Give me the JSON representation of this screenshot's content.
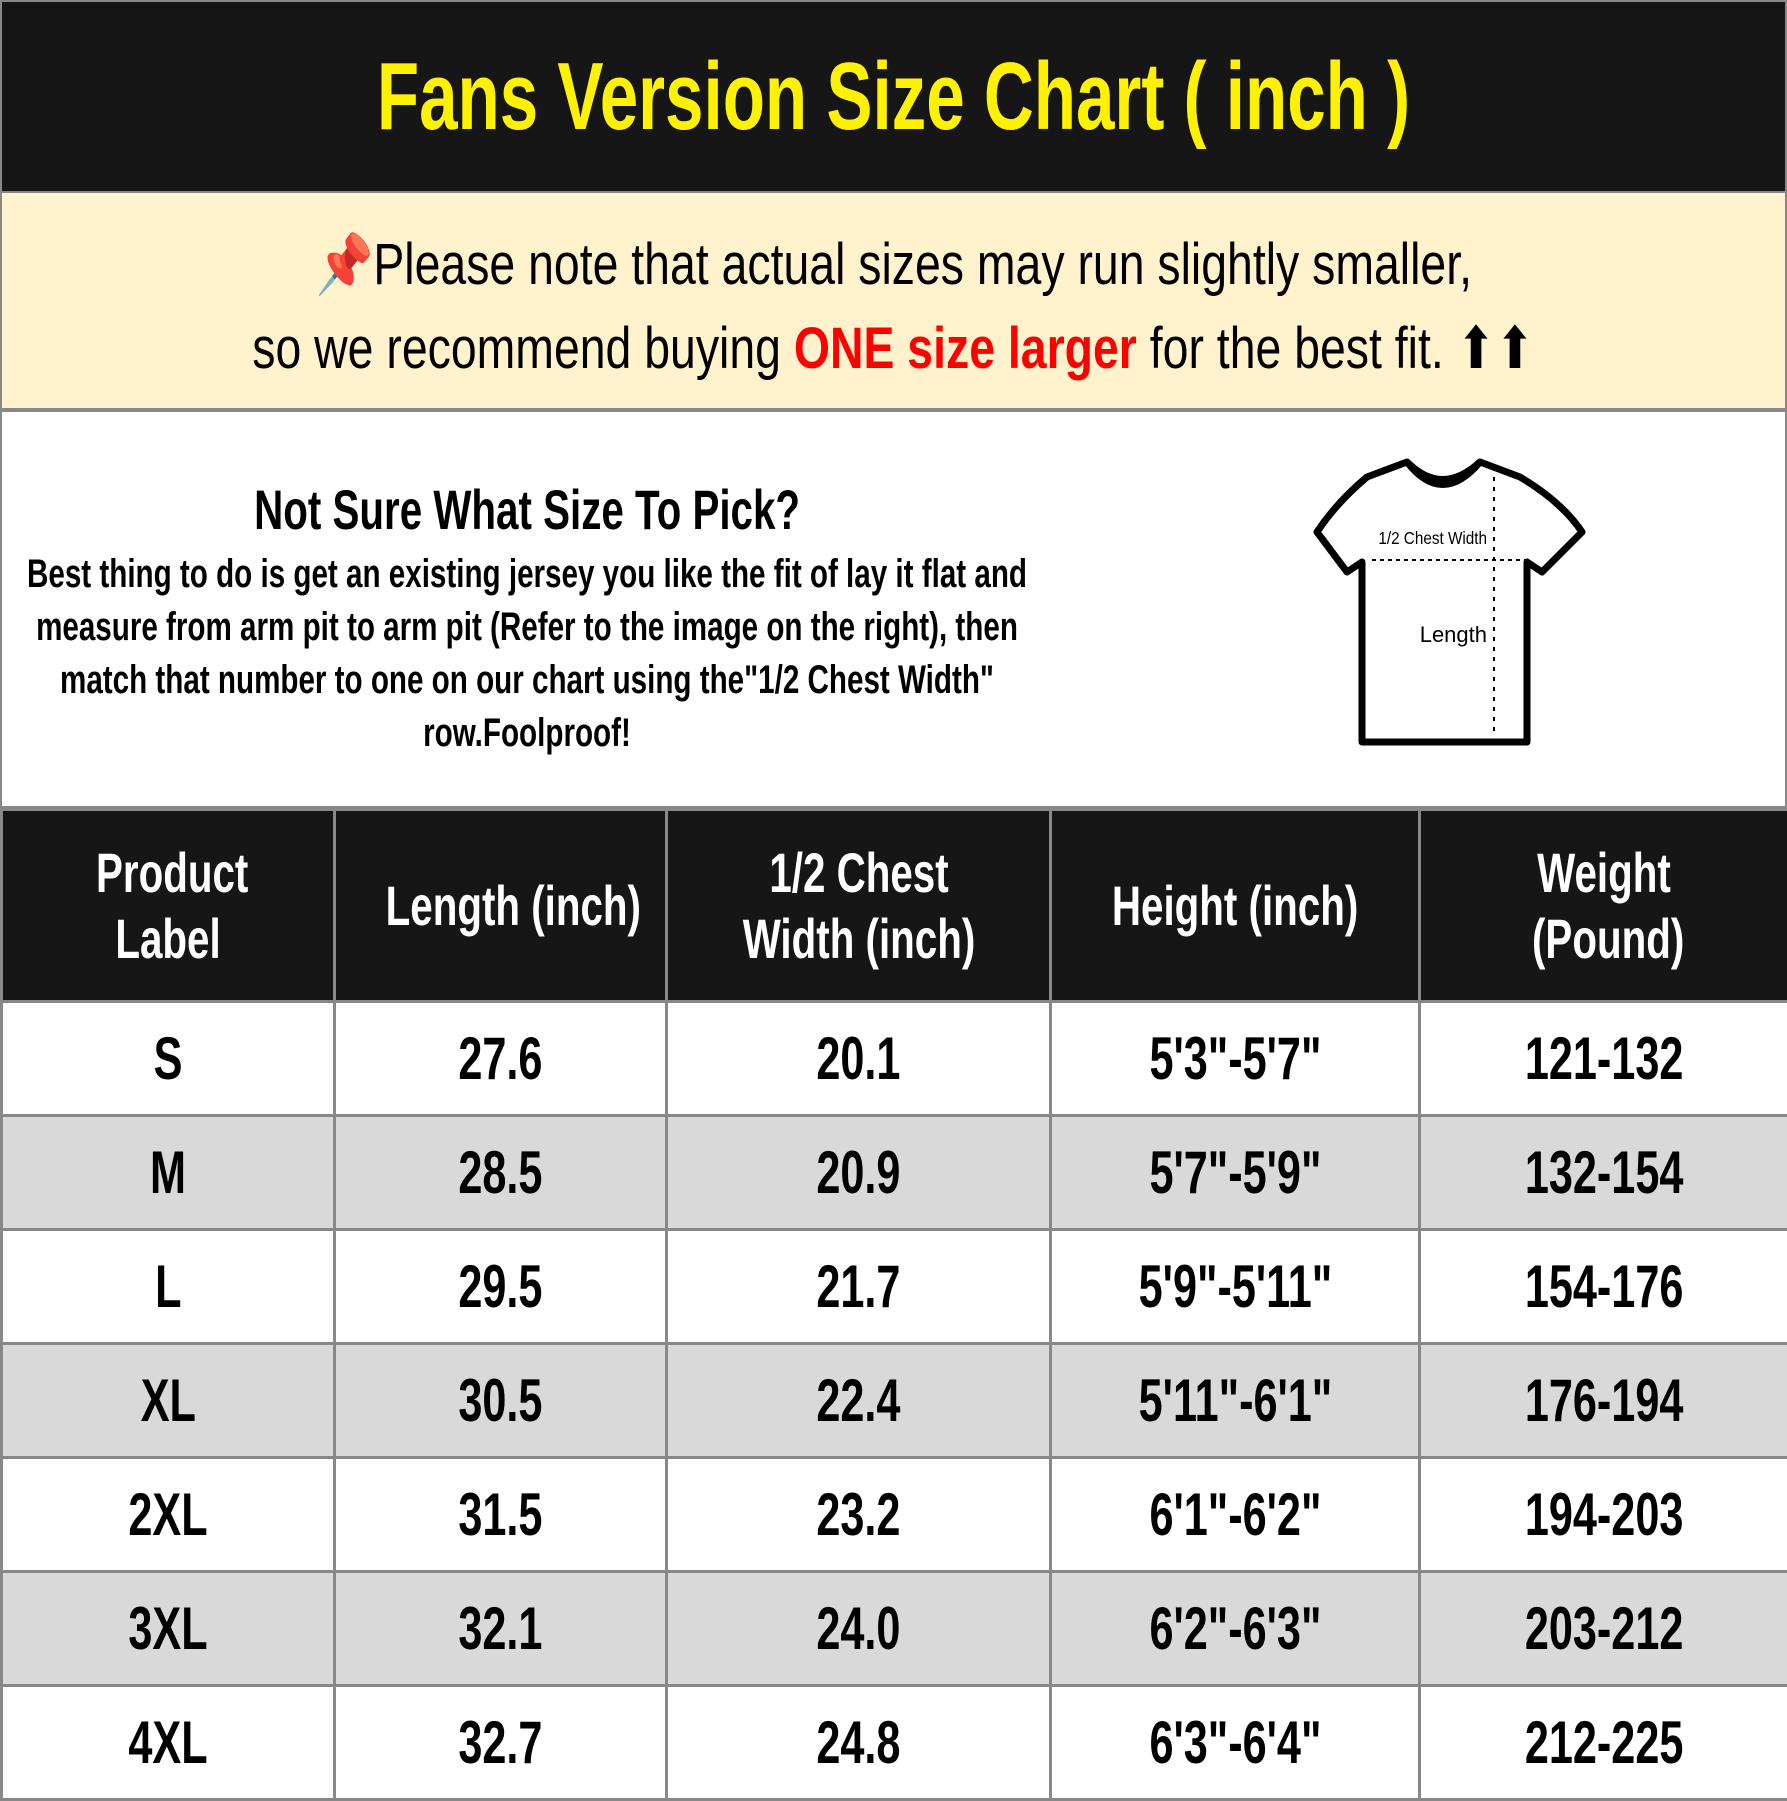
{
  "title": "Fans Version Size Chart ( inch )",
  "note": {
    "pin_icon": "pushpin-icon",
    "line1": "Please note that actual sizes may run slightly smaller,",
    "line2_pre": "so we recommend buying ",
    "line2_highlight": "ONE size larger",
    "line2_post": " for the best fit. ",
    "arrows": "⬆⬆",
    "highlight_color": "#ff0000"
  },
  "info": {
    "heading": "Not Sure What Size To Pick?",
    "body": "Best thing to do is get an existing jersey you like the fit of lay it flat and measure from arm pit to arm pit (Refer to the image on the right), then match that number to one on our chart using the\"1/2 Chest Width\" row.Foolproof!",
    "diagram_chest_label": "1/2 Chest Width",
    "diagram_length_label": "Length"
  },
  "table": {
    "headers": [
      "Product Label",
      "Length (inch)",
      "1/2 Chest Width (inch)",
      "Height (inch)",
      "Weight (Pound)"
    ],
    "rows": [
      [
        "S",
        "27.6",
        "20.1",
        "5'3\"-5'7\"",
        "121-132"
      ],
      [
        "M",
        "28.5",
        "20.9",
        "5'7\"-5'9\"",
        "132-154"
      ],
      [
        "L",
        "29.5",
        "21.7",
        "5'9\"-5'11\"",
        "154-176"
      ],
      [
        "XL",
        "30.5",
        "22.4",
        "5'11\"-6'1\"",
        "176-194"
      ],
      [
        "2XL",
        "31.5",
        "23.2",
        "6'1\"-6'2\"",
        "194-203"
      ],
      [
        "3XL",
        "32.1",
        "24.0",
        "6'2\"-6'3\"",
        "203-212"
      ],
      [
        "4XL",
        "32.7",
        "24.8",
        "6'3\"-6'4\"",
        "212-225"
      ]
    ]
  },
  "colors": {
    "title_bg": "#161616",
    "title_text": "#fff200",
    "note_bg": "#fff2cc",
    "alt_row": "#d9d9d9"
  }
}
